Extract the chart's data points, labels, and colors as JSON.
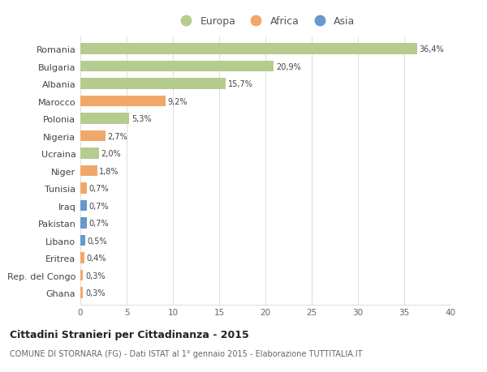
{
  "countries": [
    "Romania",
    "Bulgaria",
    "Albania",
    "Marocco",
    "Polonia",
    "Nigeria",
    "Ucraina",
    "Niger",
    "Tunisia",
    "Iraq",
    "Pakistan",
    "Libano",
    "Eritrea",
    "Rep. del Congo",
    "Ghana"
  ],
  "values": [
    36.4,
    20.9,
    15.7,
    9.2,
    5.3,
    2.7,
    2.0,
    1.8,
    0.7,
    0.7,
    0.7,
    0.5,
    0.4,
    0.3,
    0.3
  ],
  "labels": [
    "36,4%",
    "20,9%",
    "15,7%",
    "9,2%",
    "5,3%",
    "2,7%",
    "2,0%",
    "1,8%",
    "0,7%",
    "0,7%",
    "0,7%",
    "0,5%",
    "0,4%",
    "0,3%",
    "0,3%"
  ],
  "continents": [
    "Europa",
    "Europa",
    "Europa",
    "Africa",
    "Europa",
    "Africa",
    "Europa",
    "Africa",
    "Africa",
    "Asia",
    "Asia",
    "Asia",
    "Africa",
    "Africa",
    "Africa"
  ],
  "colors": {
    "Europa": "#b5cc8e",
    "Africa": "#f0a868",
    "Asia": "#6699cc"
  },
  "title_bold": "Cittadini Stranieri per Cittadinanza - 2015",
  "subtitle": "COMUNE DI STORNARA (FG) - Dati ISTAT al 1° gennaio 2015 - Elaborazione TUTTITALIA.IT",
  "xlim": [
    0,
    40
  ],
  "xticks": [
    0,
    5,
    10,
    15,
    20,
    25,
    30,
    35,
    40
  ],
  "background_color": "#ffffff",
  "grid_color": "#e0e0e0",
  "bar_height": 0.62,
  "figsize": [
    6.0,
    4.6
  ],
  "dpi": 100
}
